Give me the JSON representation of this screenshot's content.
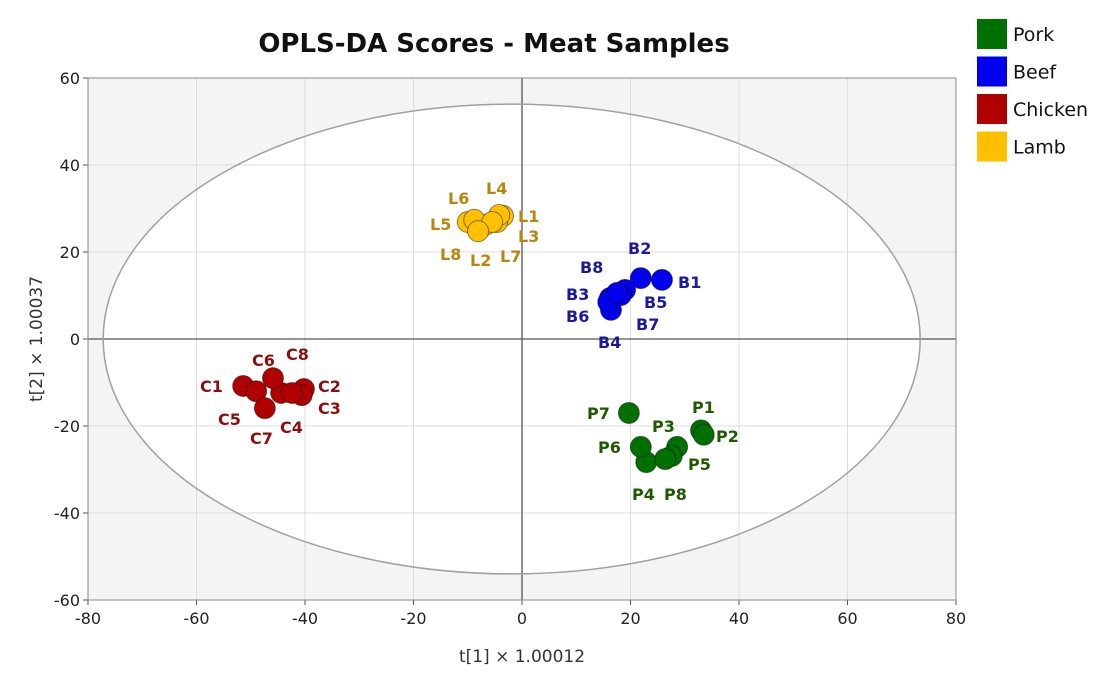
{
  "chart_data": {
    "type": "scatter",
    "title": "OPLS-DA Scores - Meat Samples",
    "xlabel": "t[1] × 1.00012",
    "ylabel": "t[2] × 1.00037",
    "xlim": [
      -80,
      80
    ],
    "ylim": [
      -60,
      60
    ],
    "xticks": [
      -80,
      -60,
      -40,
      -20,
      0,
      20,
      40,
      60,
      80
    ],
    "yticks": [
      -60,
      -40,
      -20,
      0,
      20,
      40,
      60
    ],
    "grid": true,
    "legend_placement": "top-right, outside plot",
    "confidence_ellipse": {
      "center": [
        -1.9,
        0
      ],
      "semi_axis_x": 75.3,
      "semi_axis_y": 54
    },
    "series": [
      {
        "name": "Pork",
        "color": "#007000",
        "label_color": "#1f5a00",
        "points": [
          {
            "label": "P1",
            "x": 33.0,
            "y": -21.0
          },
          {
            "label": "P2",
            "x": 33.5,
            "y": -22.0
          },
          {
            "label": "P3",
            "x": 28.6,
            "y": -24.8
          },
          {
            "label": "P4",
            "x": 22.9,
            "y": -28.3
          },
          {
            "label": "P5",
            "x": 27.6,
            "y": -26.9
          },
          {
            "label": "P6",
            "x": 21.9,
            "y": -24.8
          },
          {
            "label": "P7",
            "x": 19.7,
            "y": -17.0
          },
          {
            "label": "P8",
            "x": 26.4,
            "y": -27.6
          }
        ]
      },
      {
        "name": "Beef",
        "color": "#0000ee",
        "label_color": "#1a1a9a",
        "points": [
          {
            "label": "B1",
            "x": 25.8,
            "y": 13.6
          },
          {
            "label": "B2",
            "x": 21.9,
            "y": 14.0
          },
          {
            "label": "B3",
            "x": 16.2,
            "y": 9.4
          },
          {
            "label": "B4",
            "x": 16.4,
            "y": 6.7
          },
          {
            "label": "B5",
            "x": 19.0,
            "y": 11.3
          },
          {
            "label": "B6",
            "x": 15.9,
            "y": 8.5
          },
          {
            "label": "B7",
            "x": 18.2,
            "y": 10.1
          },
          {
            "label": "B8",
            "x": 17.5,
            "y": 10.6
          }
        ]
      },
      {
        "name": "Chicken",
        "color": "#b00000",
        "label_color": "#8a1010",
        "points": [
          {
            "label": "C1",
            "x": -51.4,
            "y": -10.8
          },
          {
            "label": "C2",
            "x": -40.2,
            "y": -11.5
          },
          {
            "label": "C3",
            "x": -40.6,
            "y": -12.9
          },
          {
            "label": "C4",
            "x": -44.4,
            "y": -12.4
          },
          {
            "label": "C5",
            "x": -49.0,
            "y": -12.0
          },
          {
            "label": "C6",
            "x": -45.9,
            "y": -9.0
          },
          {
            "label": "C7",
            "x": -47.4,
            "y": -15.9
          },
          {
            "label": "C8",
            "x": -42.4,
            "y": -12.4
          }
        ]
      },
      {
        "name": "Lamb",
        "color": "#ffc000",
        "label_color": "#b8860b",
        "points": [
          {
            "label": "L1",
            "x": -3.5,
            "y": 28.3
          },
          {
            "label": "L2",
            "x": -6.8,
            "y": 26.2
          },
          {
            "label": "L3",
            "x": -4.6,
            "y": 26.9
          },
          {
            "label": "L4",
            "x": -4.2,
            "y": 28.5
          },
          {
            "label": "L5",
            "x": -10.0,
            "y": 26.9
          },
          {
            "label": "L6",
            "x": -8.8,
            "y": 27.4
          },
          {
            "label": "L7",
            "x": -5.5,
            "y": 26.9
          },
          {
            "label": "L8",
            "x": -8.1,
            "y": 24.8
          }
        ]
      }
    ]
  }
}
